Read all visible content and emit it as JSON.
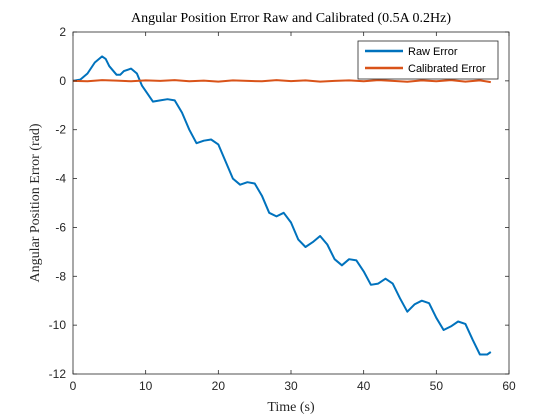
{
  "chart_data": {
    "type": "line",
    "title": "Angular Position Error Raw and Calibrated (0.5A 0.2Hz)",
    "xlabel": "Time (s)",
    "ylabel": "Angular Position Error (rad)",
    "xlim": [
      0,
      60
    ],
    "ylim": [
      -12,
      2
    ],
    "xticks": [
      0,
      10,
      20,
      30,
      40,
      50,
      60
    ],
    "yticks": [
      -12,
      -10,
      -8,
      -6,
      -4,
      -2,
      0,
      2
    ],
    "grid": false,
    "legend_position": "top-right",
    "series": [
      {
        "name": "Raw Error",
        "color": "#0072BD",
        "x": [
          0,
          1,
          2,
          3,
          4,
          4.5,
          5,
          6,
          6.5,
          7,
          8,
          8.8,
          9.5,
          10.2,
          11,
          12,
          13,
          14,
          15,
          16,
          17,
          18,
          19,
          20,
          21,
          22,
          23,
          24,
          25,
          26,
          27,
          28,
          29,
          30,
          31,
          32,
          33,
          34,
          35,
          36,
          37,
          38,
          39,
          40,
          41,
          42,
          43,
          44,
          45,
          46,
          47,
          48,
          49,
          50,
          51,
          52,
          53,
          54,
          55,
          56,
          57,
          57.5
        ],
        "y": [
          0,
          0.05,
          0.3,
          0.75,
          1.0,
          0.9,
          0.6,
          0.25,
          0.25,
          0.4,
          0.5,
          0.3,
          -0.2,
          -0.5,
          -0.85,
          -0.8,
          -0.75,
          -0.8,
          -1.3,
          -2.0,
          -2.55,
          -2.45,
          -2.4,
          -2.6,
          -3.3,
          -4.0,
          -4.25,
          -4.15,
          -4.2,
          -4.7,
          -5.4,
          -5.55,
          -5.4,
          -5.8,
          -6.5,
          -6.8,
          -6.6,
          -6.35,
          -6.7,
          -7.3,
          -7.55,
          -7.3,
          -7.35,
          -7.8,
          -8.35,
          -8.3,
          -8.1,
          -8.3,
          -8.9,
          -9.45,
          -9.15,
          -9.0,
          -9.1,
          -9.7,
          -10.2,
          -10.05,
          -9.85,
          -9.95,
          -10.6,
          -11.2,
          -11.2,
          -11.1
        ]
      },
      {
        "name": "Calibrated Error",
        "color": "#D95319",
        "x": [
          0,
          2,
          4,
          6,
          8,
          10,
          12,
          14,
          16,
          18,
          20,
          22,
          24,
          26,
          28,
          30,
          32,
          34,
          36,
          38,
          40,
          42,
          44,
          46,
          48,
          50,
          52,
          54,
          56,
          57.5
        ],
        "y": [
          0.0,
          -0.02,
          0.03,
          0.01,
          -0.02,
          0.02,
          0.0,
          0.03,
          -0.02,
          0.01,
          -0.03,
          0.02,
          0.0,
          -0.02,
          0.03,
          -0.01,
          0.02,
          -0.03,
          0.0,
          0.02,
          -0.02,
          0.03,
          0.0,
          -0.04,
          0.02,
          -0.02,
          0.03,
          -0.03,
          0.02,
          -0.05
        ]
      }
    ]
  }
}
